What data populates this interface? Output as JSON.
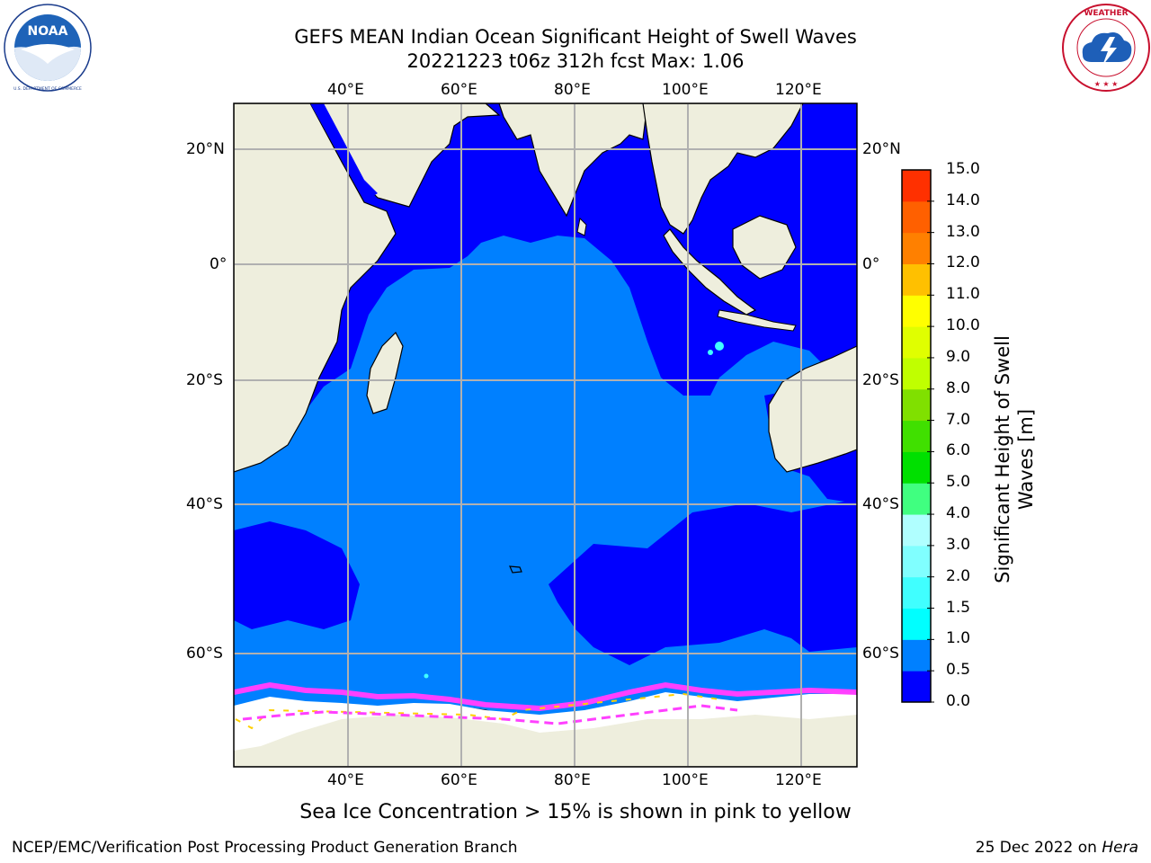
{
  "title": {
    "line1": "GEFS MEAN Indian Ocean Significant Height of Swell Waves",
    "line2": "20221223 t06z 312h fcst   Max: 1.06"
  },
  "logos": {
    "left": "NOAA",
    "left_ring_text": "NATIONAL OCEANIC AND ATMOSPHERIC ADMINISTRATION · U.S. DEPARTMENT OF COMMERCE",
    "right_ring_text": "NATIONAL WEATHER SERVICE"
  },
  "map": {
    "lon_labels": [
      "40°E",
      "60°E",
      "80°E",
      "100°E",
      "120°E"
    ],
    "lat_labels": [
      "20°N",
      "0°",
      "20°S",
      "40°S",
      "60°S"
    ],
    "colors": {
      "land": "#eeeedd",
      "ocean_low": "#0000ff",
      "ocean_mid": "#0080ff",
      "grid": "#b0b0b0"
    }
  },
  "colorbar": {
    "label": "Significant Height of Swell Waves [m]",
    "ticks": [
      "0.0",
      "0.5",
      "1.0",
      "1.5",
      "2.0",
      "3.0",
      "4.0",
      "5.0",
      "6.0",
      "7.0",
      "8.0",
      "9.0",
      "10.0",
      "11.0",
      "12.0",
      "13.0",
      "14.0",
      "15.0"
    ],
    "colors": [
      "#0000ff",
      "#0080ff",
      "#00ffff",
      "#40ffff",
      "#80ffff",
      "#b0ffff",
      "#40ff80",
      "#00e000",
      "#40e000",
      "#80e000",
      "#c0ff00",
      "#e0ff00",
      "#ffff00",
      "#ffc000",
      "#ff8000",
      "#ff6000",
      "#ff3000",
      "#ff0000"
    ]
  },
  "caption": "Sea Ice Concentration > 15% is shown in pink to yellow",
  "footer": {
    "left": "NCEP/EMC/Verification Post Processing Product Generation Branch",
    "right_date": "25 Dec 2022 on ",
    "right_host": "Hera"
  }
}
